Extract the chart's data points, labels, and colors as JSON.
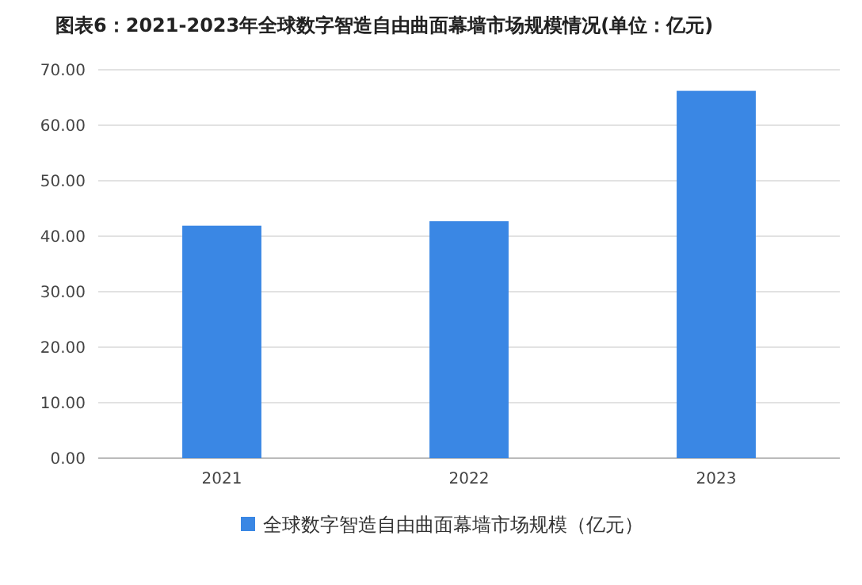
{
  "chart_data": {
    "type": "bar",
    "title": "图表6：2021-2023年全球数字智造自由曲面幕墙市场规模情况(单位：亿元)",
    "categories": [
      "2021",
      "2022",
      "2023"
    ],
    "series": [
      {
        "name": "全球数字智造自由曲面幕墙市场规模（亿元）",
        "color": "#3a87e4",
        "values": [
          41.9,
          42.7,
          66.2
        ]
      }
    ],
    "ylim": [
      0,
      70
    ],
    "yticks": [
      {
        "value": 0,
        "label": "0.00"
      },
      {
        "value": 10,
        "label": "10.00"
      },
      {
        "value": 20,
        "label": "20.00"
      },
      {
        "value": 30,
        "label": "30.00"
      },
      {
        "value": 40,
        "label": "40.00"
      },
      {
        "value": 50,
        "label": "50.00"
      },
      {
        "value": 60,
        "label": "60.00"
      },
      {
        "value": 70,
        "label": "70.00"
      }
    ],
    "grid": "y",
    "legend": "bottom"
  }
}
